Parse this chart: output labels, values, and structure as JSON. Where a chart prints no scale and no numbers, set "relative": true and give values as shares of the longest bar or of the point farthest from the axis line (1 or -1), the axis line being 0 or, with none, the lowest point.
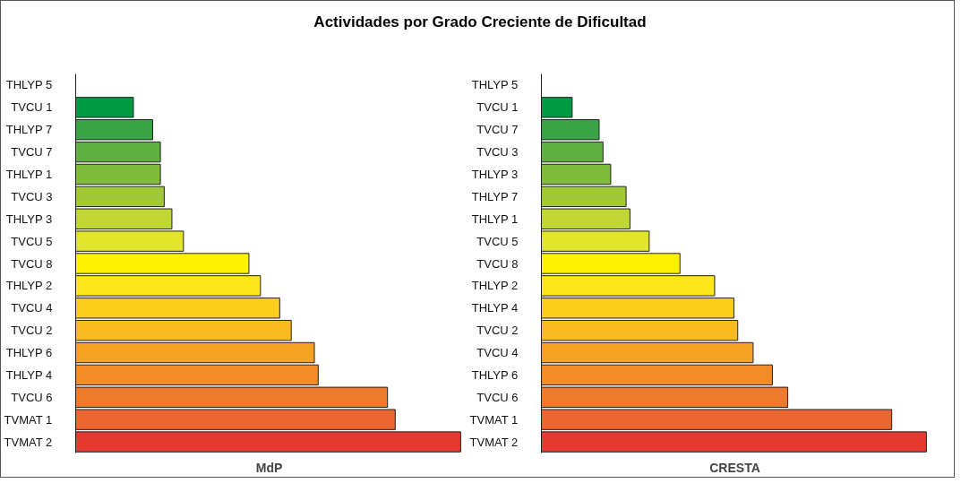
{
  "chart_data": [
    {
      "type": "bar",
      "orientation": "horizontal",
      "relative": true,
      "title": "Actividades por Grado Creciente de Dificultad",
      "xlabel": "MdP",
      "grid": false,
      "categories": [
        "THLYP 5",
        "TVCU 1",
        "THLYP 7",
        "TVCU 7",
        "THLYP 1",
        "TVCU 3",
        "THLYP 3",
        "TVCU 5",
        "TVCU 8",
        "THLYP 2",
        "TVCU 4",
        "TVCU 2",
        "THLYP 6",
        "THLYP 4",
        "TVCU 6",
        "TVMAT 1",
        "TVMAT 2"
      ],
      "values": [
        null,
        0.15,
        0.2,
        0.22,
        0.22,
        0.23,
        0.25,
        0.28,
        0.45,
        0.48,
        0.53,
        0.56,
        0.62,
        0.63,
        0.81,
        0.83,
        1
      ],
      "colors": [
        "#009a44",
        "#009a44",
        "#3aa345",
        "#5fb040",
        "#80bb3c",
        "#a0c838",
        "#c2d733",
        "#e2e62b",
        "#fff200",
        "#fde71a",
        "#fbcf1c",
        "#f9bb20",
        "#f6a323",
        "#f28c28",
        "#ee7a2b",
        "#eb652e",
        "#e53a32"
      ]
    },
    {
      "type": "bar",
      "orientation": "horizontal",
      "relative": true,
      "xlabel": "CRESTA",
      "grid": false,
      "categories": [
        "THLYP 5",
        "TVCU 1",
        "TVCU 7",
        "TVCU 3",
        "THLYP 3",
        "THLYP 7",
        "THLYP 1",
        "TVCU 5",
        "TVCU 8",
        "THLYP 2",
        "THLYP 4",
        "TVCU 2",
        "TVCU 4",
        "THLYP 6",
        "TVCU 6",
        "TVMAT 1",
        "TVMAT 2"
      ],
      "values": [
        null,
        0.08,
        0.15,
        0.16,
        0.18,
        0.22,
        0.23,
        0.28,
        0.36,
        0.45,
        0.5,
        0.51,
        0.55,
        0.6,
        0.64,
        0.91,
        1
      ],
      "colors": [
        "#009a44",
        "#009a44",
        "#3aa345",
        "#5fb040",
        "#80bb3c",
        "#a0c838",
        "#c2d733",
        "#e2e62b",
        "#fff200",
        "#fde71a",
        "#fbcf1c",
        "#f9bb20",
        "#f6a323",
        "#f28c28",
        "#ee7a2b",
        "#eb652e",
        "#e53a32"
      ]
    }
  ]
}
